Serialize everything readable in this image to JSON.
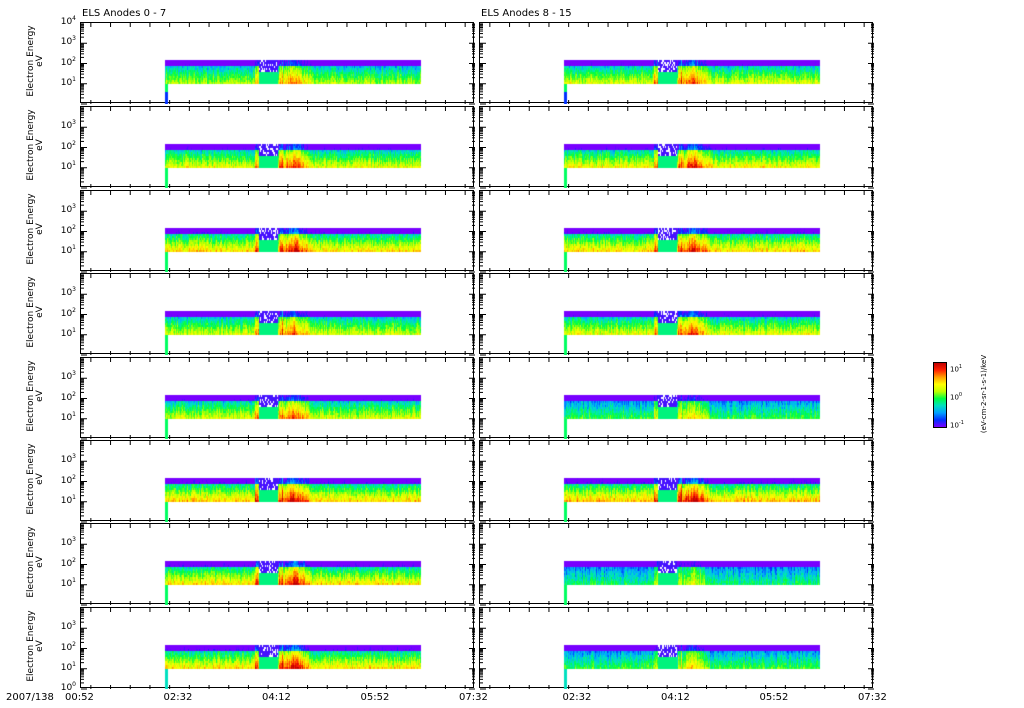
{
  "chart_data": {
    "type": "heatmap",
    "column_titles": [
      "ELS Anodes 0 - 7",
      "ELS Anodes 8 - 15"
    ],
    "ylabel": "Electron Energy",
    "yunit": "eV",
    "yscale": "log",
    "ylim": [
      1,
      10000
    ],
    "ytick_exponents": [
      "0",
      "1",
      "2",
      "3",
      "4"
    ],
    "date_label": "2007/138",
    "xticks": [
      "00:52",
      "02:32",
      "04:12",
      "05:52",
      "07:32"
    ],
    "xlim_minutes": [
      52,
      452
    ],
    "data_start_minutes": 137,
    "data_end_minutes": 397,
    "energy_range_eV": [
      10,
      150
    ],
    "colorbar": {
      "label": "(eV-cm-2-sr-1-s-1)/keV",
      "ticks": [
        "1",
        "0",
        "-1"
      ],
      "colormap": "jet"
    },
    "panels": [
      {
        "anode": 0,
        "level": 0.55
      },
      {
        "anode": 1,
        "level": 0.62
      },
      {
        "anode": 2,
        "level": 0.68
      },
      {
        "anode": 3,
        "level": 0.6
      },
      {
        "anode": 4,
        "level": 0.6
      },
      {
        "anode": 5,
        "level": 0.7
      },
      {
        "anode": 6,
        "level": 0.68
      },
      {
        "anode": 7,
        "level": 0.68
      },
      {
        "anode": 8,
        "level": 0.6
      },
      {
        "anode": 9,
        "level": 0.65
      },
      {
        "anode": 10,
        "level": 0.68
      },
      {
        "anode": 11,
        "level": 0.62
      },
      {
        "anode": 12,
        "level": 0.45
      },
      {
        "anode": 13,
        "level": 0.72
      },
      {
        "anode": 14,
        "level": 0.4
      },
      {
        "anode": 15,
        "level": 0.45
      }
    ]
  }
}
